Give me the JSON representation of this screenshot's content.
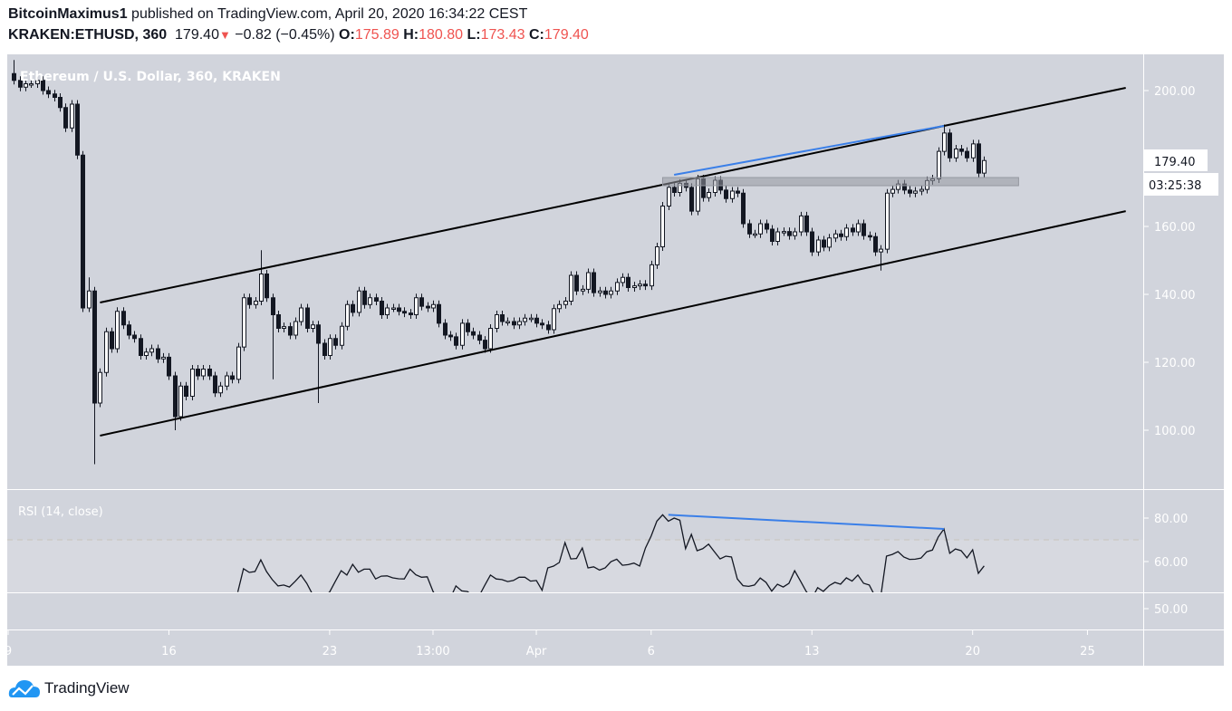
{
  "header": {
    "author": "BitcoinMaximus1",
    "published": "published on TradingView.com, April 20, 2020 16:34:22 CEST",
    "symbol": "KRAKEN:ETHUSD, 360",
    "last": "179.40",
    "change": "−0.82 (−0.45%)",
    "o_label": "O:",
    "o": "175.89",
    "h_label": "H:",
    "h": "180.80",
    "l_label": "L:",
    "l": "173.43",
    "c_label": "C:",
    "c": "179.40",
    "down_icon": "triangle-down-icon"
  },
  "colors": {
    "pane": "#d1d4dc",
    "bull": "#ffffff",
    "bear": "#131722",
    "drawing_blue": "#3a7fe8",
    "down": "#ef5350"
  },
  "footer": {
    "logo": "TradingView"
  },
  "chart_data": [
    {
      "type": "candlestick",
      "title": "Ethereum / U.S. Dollar, 360, KRAKEN",
      "interval_minutes": 360,
      "start": "2020-03-09T06:00",
      "close": [
        203,
        201,
        202,
        202,
        203,
        200,
        199,
        198,
        195,
        189,
        196,
        181,
        136,
        141,
        108,
        117,
        129,
        124,
        135,
        131,
        128,
        127,
        122,
        123,
        124,
        121,
        121.5,
        116,
        104,
        113,
        110,
        118,
        116,
        118,
        116,
        111,
        113,
        116,
        115,
        124.5,
        139,
        137,
        138,
        146,
        139,
        134,
        130,
        130.5,
        128,
        132,
        136,
        130,
        131,
        125.6,
        122,
        127,
        125,
        130.6,
        137,
        134.7,
        141,
        137,
        139,
        138,
        134,
        136,
        136,
        135,
        134.5,
        134,
        139,
        136.5,
        136,
        137,
        131.5,
        128,
        127.5,
        125,
        131.5,
        129,
        128,
        126.5,
        124,
        130,
        134,
        132,
        132,
        131,
        132,
        133,
        133,
        131.5,
        131,
        129.6,
        135.8,
        137,
        138,
        145.6,
        141,
        141.5,
        146.4,
        140.5,
        141,
        140,
        141,
        143.5,
        145,
        142,
        142.5,
        143,
        142.5,
        148.7,
        154,
        166,
        171.5,
        170,
        172.7,
        171.5,
        164.5,
        174,
        168.5,
        170,
        173.6,
        170.7,
        168.2,
        170.4,
        169.8,
        160.8,
        157.8,
        157.8,
        160.8,
        159.2,
        155.6,
        158.4,
        158.5,
        157.3,
        158.4,
        163.1,
        158.4,
        152.5,
        156,
        153.9,
        156.6,
        157.8,
        157,
        159.5,
        158.4,
        160.8,
        157.3,
        157,
        152.5,
        153.3,
        169.8,
        170.9,
        172.5,
        170.7,
        169.8,
        170.4,
        170.9,
        173.5,
        174,
        182.1,
        187.5,
        180.2,
        182.8,
        182.1,
        180.2,
        184.3,
        175.7,
        179.4
      ],
      "first_open": 205,
      "wick_extremes": [
        {
          "index": 0,
          "high": 209
        },
        {
          "index": 14,
          "low": 90
        },
        {
          "index": 13,
          "high": 145
        },
        {
          "index": 28,
          "low": 100
        },
        {
          "index": 43,
          "high": 153
        },
        {
          "index": 45,
          "low": 115
        },
        {
          "index": 53,
          "low": 108
        },
        {
          "index": 151,
          "low": 147
        },
        {
          "index": 162,
          "high": 190
        }
      ],
      "y_axis": {
        "ticks": [
          "200.00",
          "160.00",
          "140.00",
          "120.00",
          "100.00"
        ],
        "range": [
          87,
          210
        ]
      },
      "x_axis": {
        "ticks": [
          {
            "label": "9",
            "time": "2020-03-09T00:00"
          },
          {
            "label": "16",
            "time": "2020-03-16T00:00"
          },
          {
            "label": "23",
            "time": "2020-03-23T00:00"
          },
          {
            "label": "13:00",
            "time": "2020-03-27T12:00"
          },
          {
            "label": "Apr",
            "time": "2020-04-01T00:00"
          },
          {
            "label": "6",
            "time": "2020-04-06T00:00"
          },
          {
            "label": "13",
            "time": "2020-04-13T00:00"
          },
          {
            "label": "20",
            "time": "2020-04-20T00:00"
          },
          {
            "label": "25",
            "time": "2020-04-25T00:00"
          }
        ]
      },
      "last_price_label": "179.40",
      "countdown_label": "03:25:38",
      "drawings": [
        {
          "kind": "trendline",
          "name": "channel-upper",
          "color": "#000000",
          "from": [
            "2020-03-13T00:00",
            137.6
          ],
          "to": [
            "2020-04-26T16:00",
            200.8
          ]
        },
        {
          "kind": "trendline",
          "name": "channel-lower",
          "color": "#000000",
          "from": [
            "2020-03-13T00:00",
            98.4
          ],
          "to": [
            "2020-04-26T16:00",
            164.5
          ]
        },
        {
          "kind": "trendline",
          "name": "price-highs",
          "color": "#3a7fe8",
          "from": [
            "2020-04-07T00:00",
            175.2
          ],
          "to": [
            "2020-04-18T18:00",
            189.6
          ]
        },
        {
          "kind": "rectangle",
          "name": "resistance-zone",
          "color": "#9598a1",
          "from": [
            "2020-04-06T12:00",
            174.4
          ],
          "to": [
            "2020-04-22T00:00",
            172.0
          ]
        }
      ]
    },
    {
      "type": "line",
      "title": "RSI (14, close)",
      "start_index": 39,
      "values": [
        46,
        56.7,
        55,
        55.4,
        60.8,
        55.4,
        51.7,
        48.8,
        49.2,
        48.3,
        50.9,
        53.8,
        50,
        45,
        42,
        44,
        46,
        50.9,
        55.8,
        53.8,
        58.7,
        55.1,
        56.5,
        56.5,
        52,
        53.3,
        53.4,
        52.5,
        52.1,
        52,
        56.5,
        53.9,
        52.8,
        53,
        46.3,
        42,
        40,
        43,
        48.8,
        46.5,
        46.2,
        44,
        44,
        49,
        53.8,
        52,
        51.7,
        50.8,
        51.3,
        52.8,
        52.8,
        51,
        51.3,
        46.8,
        57.1,
        57.9,
        59.6,
        68.7,
        61.2,
        61.4,
        66.2,
        57.1,
        57.6,
        56.1,
        57.1,
        59.9,
        61.1,
        58.3,
        58.6,
        59.3,
        57.9,
        66.2,
        71.7,
        78.6,
        81.5,
        78.6,
        80,
        79,
        65.9,
        72.5,
        65,
        65.9,
        68,
        64.6,
        61.2,
        62.5,
        62.1,
        52,
        48.9,
        48.6,
        49.2,
        52.4,
        50.4,
        46.4,
        49.6,
        48.3,
        50,
        55.8,
        51.1,
        46.3,
        43,
        48,
        46.3,
        48.9,
        50.4,
        49.6,
        52.5,
        51,
        53.8,
        50,
        49.2,
        44,
        44,
        62.5,
        63.3,
        64.6,
        62.1,
        61,
        61.1,
        61.6,
        64.5,
        65.3,
        71.3,
        75,
        63.8,
        65.8,
        65,
        61.7,
        65.4,
        54.6,
        58
      ],
      "y_axis": {
        "ticks": [
          "80.00",
          "60.00",
          "50.00"
        ]
      },
      "overbought_level": 70,
      "drawings": [
        {
          "kind": "trendline",
          "name": "rsi-highs",
          "color": "#3a7fe8",
          "from": [
            "2020-04-06T18:00",
            81.5
          ],
          "to": [
            "2020-04-18T18:00",
            75
          ]
        }
      ]
    }
  ]
}
